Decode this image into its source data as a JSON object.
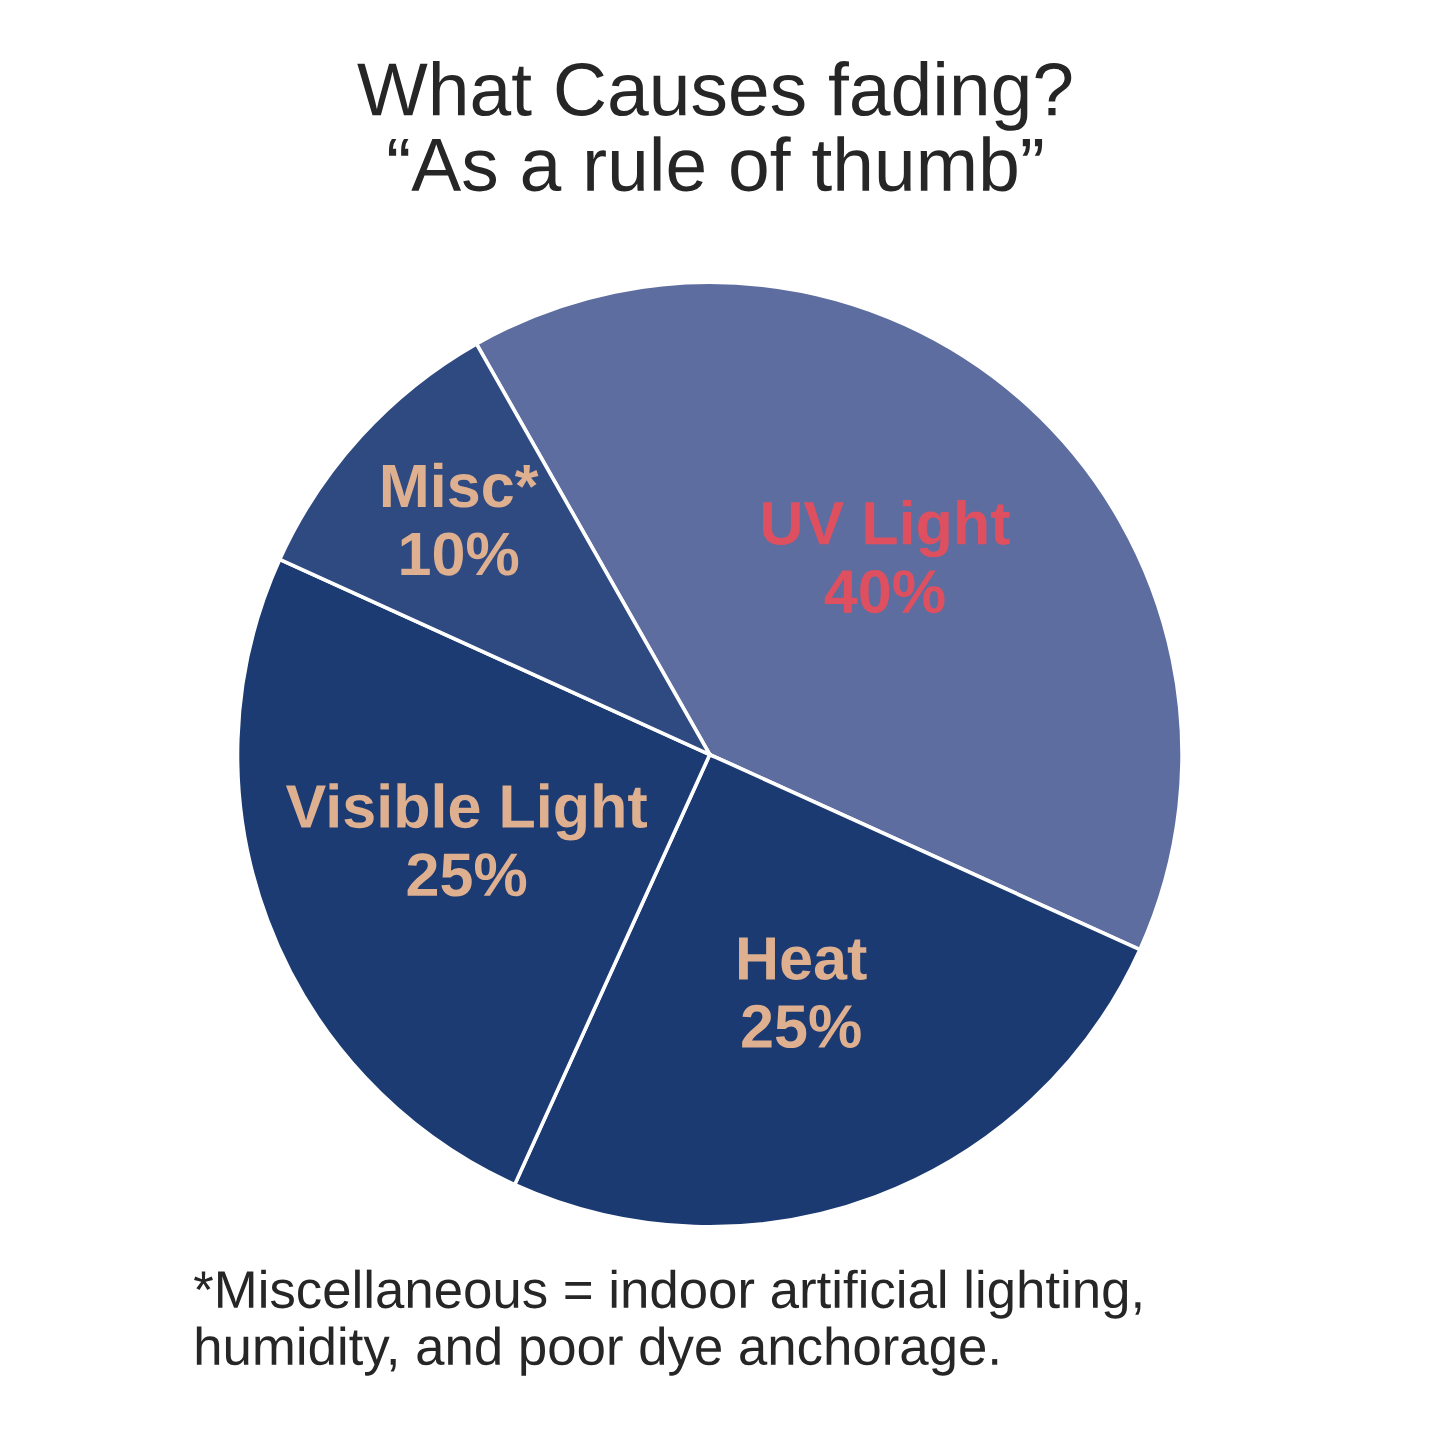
{
  "chart_data": {
    "type": "pie",
    "title": "What Causes fading?\n“As a rule of thumb”",
    "categories": [
      "UV Light",
      "Heat",
      "Visible Light",
      "Misc*"
    ],
    "values": [
      40,
      25,
      25,
      10
    ],
    "value_labels": [
      "40%",
      "25%",
      "25%",
      "10%"
    ],
    "colors": [
      "#5d6d9f",
      "#1b3a72",
      "#1c3b73",
      "#2f4a80"
    ],
    "annotations": [
      "*Miscellaneous = indoor artificial lighting,\nhumidity, and poor dye anchorage."
    ]
  }
}
